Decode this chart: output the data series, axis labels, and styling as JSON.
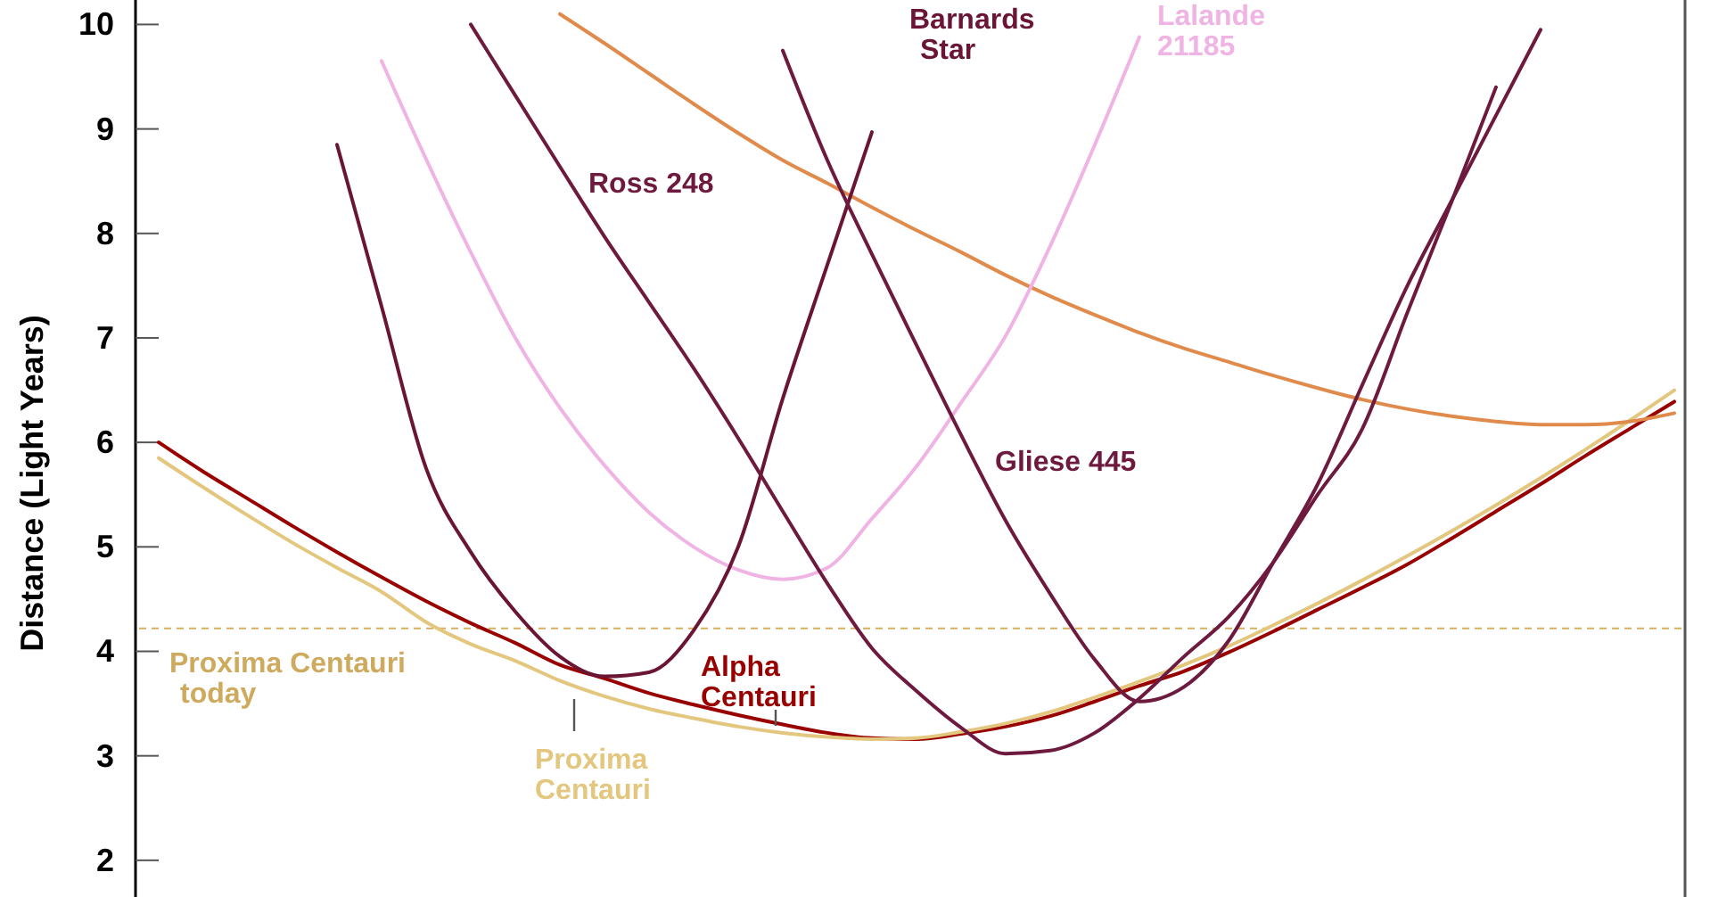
{
  "chart_data": {
    "type": "line",
    "ylabel": "Distance (Light Years)",
    "tick_labels": "y",
    "ylim": [
      1.7,
      10.2
    ],
    "yticks": [
      2,
      3,
      4,
      5,
      6,
      7,
      8,
      9,
      10
    ],
    "categories": [
      null,
      null,
      null,
      null,
      null,
      null,
      null,
      null,
      null,
      null,
      null,
      null,
      null,
      null,
      null,
      null,
      null,
      null,
      null,
      null,
      null,
      null,
      null,
      null,
      null,
      null,
      null,
      null,
      null,
      null,
      null,
      null,
      null,
      null,
      null
    ],
    "ref_lines": [
      {
        "axis": "y",
        "value": 4.22,
        "label": "Proxima Centauri today",
        "color": "#d4b060",
        "line_style": "dashed"
      }
    ],
    "series": [
      {
        "name": "Alpha Centauri",
        "color": "#990000",
        "values": [
          6.0,
          5.72,
          5.46,
          5.2,
          4.95,
          4.71,
          4.48,
          4.27,
          4.08,
          3.87,
          3.74,
          3.6,
          3.49,
          3.39,
          3.3,
          3.22,
          3.17,
          3.16,
          3.21,
          3.28,
          3.38,
          3.52,
          3.67,
          3.81,
          3.99,
          4.19,
          4.4,
          4.61,
          4.83,
          5.08,
          5.34,
          5.6,
          5.87,
          6.13,
          6.39
        ]
      },
      {
        "name": "Proxima Centauri",
        "color": "#e3c77f",
        "values": [
          5.85,
          5.57,
          5.3,
          5.04,
          4.8,
          4.57,
          4.28,
          4.07,
          3.91,
          3.72,
          3.57,
          3.45,
          3.36,
          3.28,
          3.22,
          3.18,
          3.16,
          3.17,
          3.23,
          3.31,
          3.42,
          3.56,
          3.71,
          3.87,
          4.05,
          4.25,
          4.46,
          4.68,
          4.91,
          5.15,
          5.4,
          5.66,
          5.93,
          6.21,
          6.5
        ]
      },
      {
        "color": "#e08b4b",
        "values": [
          null,
          null,
          null,
          null,
          null,
          null,
          null,
          null,
          null,
          10.1,
          9.82,
          9.53,
          9.24,
          8.96,
          8.7,
          8.48,
          8.25,
          8.03,
          7.82,
          7.6,
          7.4,
          7.22,
          7.05,
          6.9,
          6.77,
          6.64,
          6.52,
          6.41,
          6.32,
          6.25,
          6.2,
          6.17,
          6.17,
          6.2,
          6.28
        ]
      },
      {
        "name": "Lalande 21185",
        "color": "#f0b4e4",
        "values": [
          null,
          null,
          null,
          null,
          null,
          9.65,
          8.71,
          7.82,
          7.0,
          6.33,
          5.78,
          5.33,
          5.0,
          4.78,
          4.69,
          4.8,
          5.27,
          5.77,
          6.38,
          7.02,
          7.88,
          8.85,
          9.88,
          null,
          null,
          null,
          null,
          null,
          null,
          null,
          null,
          null,
          null,
          null,
          null
        ]
      },
      {
        "name": "Barnards Star",
        "color": "#6b1535",
        "values": [
          null,
          null,
          null,
          null,
          8.85,
          7.3,
          5.75,
          4.95,
          4.38,
          3.95,
          3.76,
          3.8,
          4.2,
          5.0,
          6.42,
          7.7,
          8.97,
          null,
          null,
          null,
          null,
          null,
          null,
          null,
          null,
          null,
          null,
          null,
          null,
          null,
          null,
          null,
          null,
          null,
          null
        ]
      },
      {
        "name": "Ross 248",
        "color": "#6e1a3f",
        "values": [
          null,
          null,
          null,
          null,
          null,
          null,
          null,
          10.0,
          9.32,
          8.64,
          7.97,
          7.34,
          6.71,
          6.04,
          5.34,
          4.65,
          4.03,
          3.62,
          3.27,
          3.02,
          3.05,
          3.22,
          3.55,
          3.95,
          4.33,
          4.85,
          5.5,
          6.13,
          7.23,
          8.3,
          9.4,
          null,
          null,
          null,
          null
        ]
      },
      {
        "name": "Gliese 445",
        "color": "#6e1a3f",
        "values": [
          null,
          null,
          null,
          null,
          null,
          null,
          null,
          null,
          null,
          null,
          null,
          null,
          null,
          null,
          9.75,
          8.7,
          7.8,
          6.93,
          6.07,
          5.25,
          4.55,
          3.92,
          3.52,
          3.66,
          4.1,
          4.85,
          5.6,
          6.55,
          7.49,
          8.31,
          9.13,
          9.95,
          null,
          null,
          null
        ]
      }
    ]
  }
}
